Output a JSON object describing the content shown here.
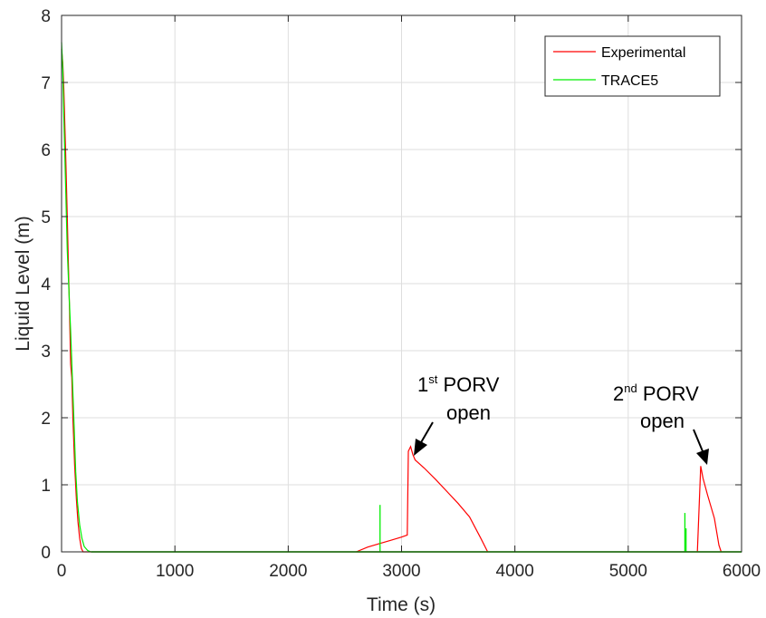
{
  "chart_data": {
    "type": "line",
    "xlabel": "Time (s)",
    "ylabel": "Liquid Level (m)",
    "xlim": [
      0,
      6000
    ],
    "ylim": [
      0,
      8
    ],
    "xticks": [
      0,
      1000,
      2000,
      3000,
      4000,
      5000,
      6000
    ],
    "yticks": [
      0,
      1,
      2,
      3,
      4,
      5,
      6,
      7,
      8
    ],
    "grid": true,
    "legend_position": "top-right",
    "series": [
      {
        "name": "Experimental",
        "color": "#ff0000",
        "x": [
          0,
          10,
          20,
          35,
          50,
          60,
          70,
          80,
          90,
          100,
          115,
          130,
          145,
          160,
          175,
          190,
          200,
          6000
        ],
        "y": [
          7.5,
          7.3,
          6.9,
          6.0,
          5.0,
          4.3,
          3.6,
          2.8,
          2.6,
          2.0,
          1.3,
          0.8,
          0.45,
          0.2,
          0.05,
          0.0,
          0.0,
          0.0
        ],
        "extra_segments": [
          {
            "x": [
              2600,
              2700,
              2800,
              2900,
              3000,
              3050,
              3060,
              3080,
              3100,
              3120,
              3200,
              3300,
              3400,
              3500,
              3600,
              3700,
              3760
            ],
            "y": [
              0.0,
              0.07,
              0.12,
              0.17,
              0.22,
              0.25,
              1.5,
              1.57,
              1.45,
              1.37,
              1.25,
              1.08,
              0.9,
              0.72,
              0.52,
              0.2,
              0.0
            ]
          },
          {
            "x": [
              5610,
              5640,
              5660,
              5700,
              5760,
              5800,
              5820
            ],
            "y": [
              0.0,
              1.28,
              1.1,
              0.85,
              0.5,
              0.1,
              0.0
            ]
          }
        ]
      },
      {
        "name": "TRACE5",
        "color": "#00ee00",
        "x": [
          0,
          10,
          20,
          35,
          50,
          65,
          80,
          95,
          110,
          125,
          140,
          160,
          180,
          200,
          230,
          260,
          6000
        ],
        "y": [
          7.6,
          7.2,
          6.5,
          5.5,
          4.5,
          3.9,
          3.3,
          2.6,
          1.9,
          1.2,
          0.75,
          0.4,
          0.2,
          0.08,
          0.02,
          0.0,
          0.0
        ],
        "spikes": [
          {
            "x": 2810,
            "y": 0.7
          },
          {
            "x": 5500,
            "y": 0.58
          },
          {
            "x": 5510,
            "y": 0.35
          }
        ]
      }
    ],
    "annotations": [
      {
        "base": "1",
        "sup": "st",
        "rest": " PORV",
        "line2": "open"
      },
      {
        "base": "2",
        "sup": "nd",
        "rest": " PORV",
        "line2": "open"
      }
    ]
  }
}
